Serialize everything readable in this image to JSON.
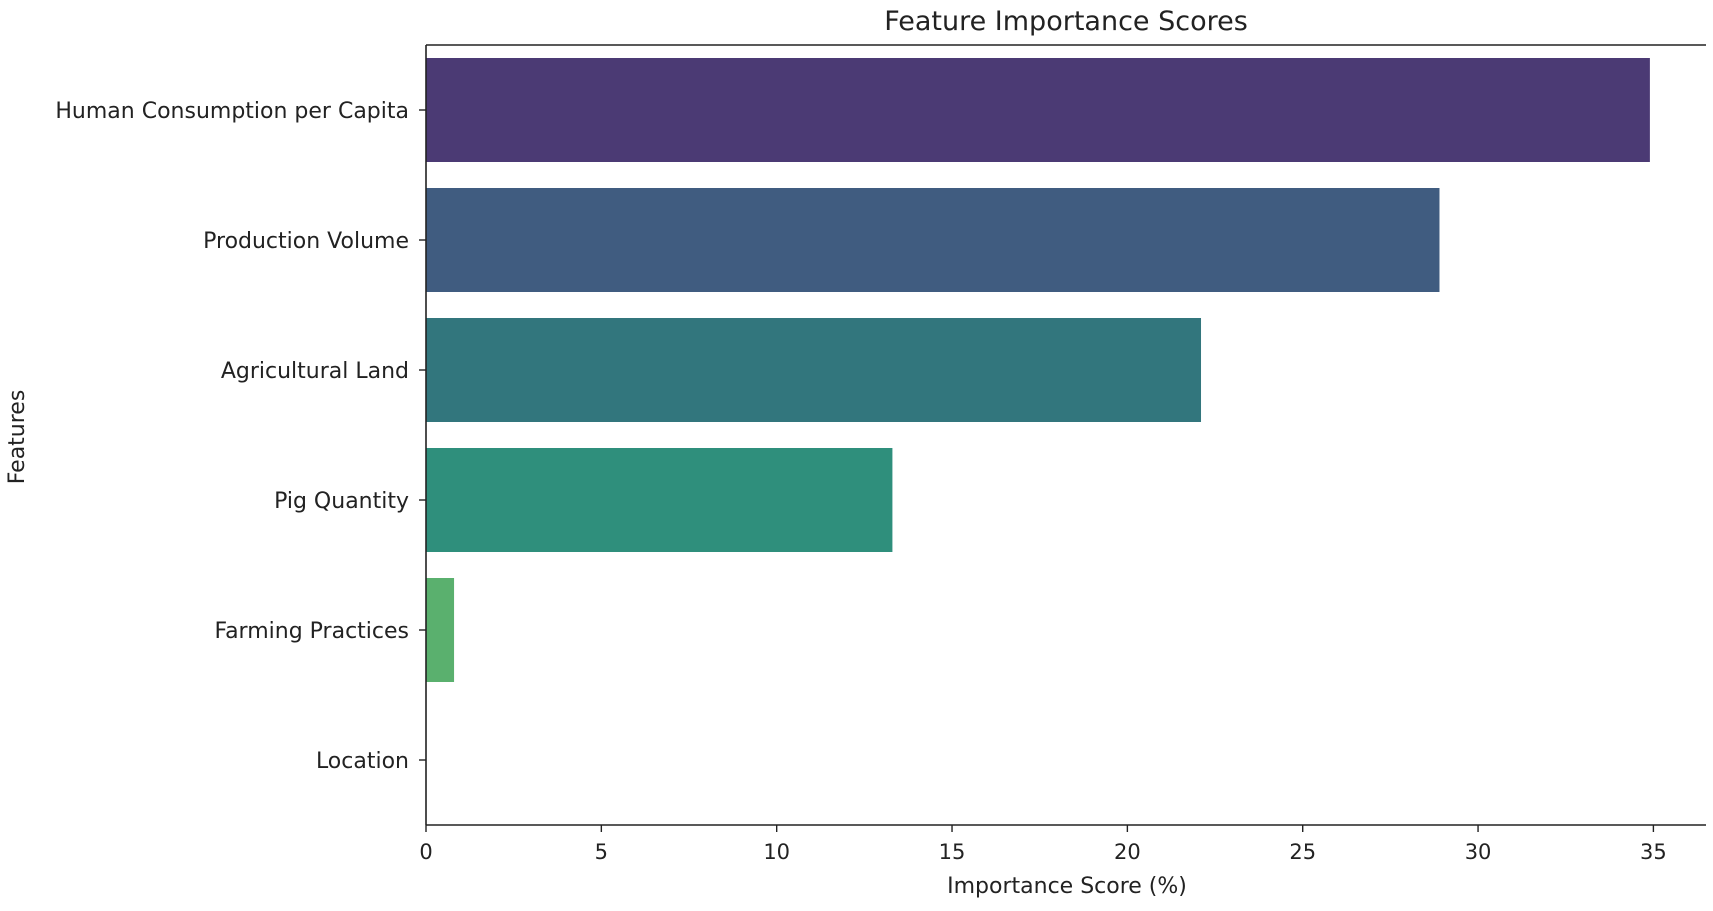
{
  "chart_data": {
    "type": "bar",
    "orientation": "horizontal",
    "title": "Feature Importance Scores",
    "xlabel": "Importance Score (%)",
    "ylabel": "Features",
    "categories": [
      "Human Consumption per Capita",
      "Production Volume",
      "Agricultural Land",
      "Pig Quantity",
      "Farming Practices",
      "Location"
    ],
    "values": [
      34.9,
      28.9,
      22.1,
      13.3,
      0.8,
      0.0
    ],
    "xlim": [
      0,
      36.5
    ],
    "xticks": [
      "0",
      "5",
      "10",
      "15",
      "20",
      "25",
      "30",
      "35"
    ],
    "colors": [
      "#4b3a74",
      "#405c80",
      "#32767d",
      "#2f8f7c",
      "#5ab06e",
      "#8fd15a"
    ],
    "grid": false
  }
}
